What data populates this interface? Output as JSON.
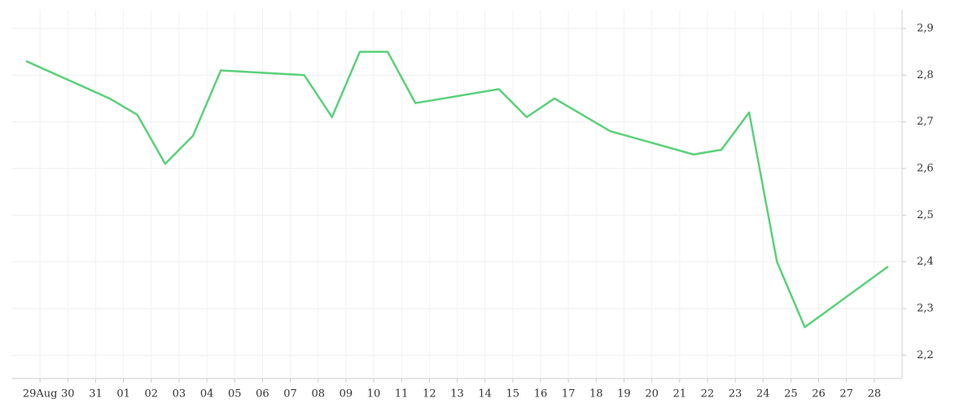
{
  "chart_data": {
    "type": "line",
    "x": [
      -0.5,
      2.5,
      3.5,
      4.5,
      5.5,
      6.5,
      9.5,
      10.5,
      11.5,
      12.5,
      13.5,
      16.5,
      17.5,
      18.5,
      20.5,
      23.5,
      24.5,
      25.5,
      26.5,
      27.5,
      30.5
    ],
    "series": [
      {
        "color": "#5ad17a",
        "values": [
          2.83,
          2.75,
          2.715,
          2.61,
          2.67,
          2.81,
          2.8,
          2.71,
          2.85,
          2.85,
          2.74,
          2.77,
          2.71,
          2.75,
          2.68,
          2.63,
          2.64,
          2.72,
          2.4,
          2.26,
          2.39
        ]
      }
    ],
    "xlim": [
      -1,
      31
    ],
    "xticks": [
      {
        "value": 0,
        "label": "29Aug"
      },
      {
        "value": 1,
        "label": "30"
      },
      {
        "value": 2,
        "label": "31"
      },
      {
        "value": 3,
        "label": "01"
      },
      {
        "value": 4,
        "label": "02"
      },
      {
        "value": 5,
        "label": "03"
      },
      {
        "value": 6,
        "label": "04"
      },
      {
        "value": 7,
        "label": "05"
      },
      {
        "value": 8,
        "label": "06"
      },
      {
        "value": 9,
        "label": "07"
      },
      {
        "value": 10,
        "label": "08"
      },
      {
        "value": 11,
        "label": "09"
      },
      {
        "value": 12,
        "label": "10"
      },
      {
        "value": 13,
        "label": "11"
      },
      {
        "value": 14,
        "label": "12"
      },
      {
        "value": 15,
        "label": "13"
      },
      {
        "value": 16,
        "label": "14"
      },
      {
        "value": 17,
        "label": "15"
      },
      {
        "value": 18,
        "label": "16"
      },
      {
        "value": 19,
        "label": "17"
      },
      {
        "value": 20,
        "label": "18"
      },
      {
        "value": 21,
        "label": "19"
      },
      {
        "value": 22,
        "label": "20"
      },
      {
        "value": 23,
        "label": "21"
      },
      {
        "value": 24,
        "label": "22"
      },
      {
        "value": 25,
        "label": "23"
      },
      {
        "value": 26,
        "label": "24"
      },
      {
        "value": 27,
        "label": "25"
      },
      {
        "value": 28,
        "label": "26"
      },
      {
        "value": 29,
        "label": "27"
      },
      {
        "value": 30,
        "label": "28"
      }
    ],
    "ylim": [
      2.15,
      2.94
    ],
    "yticks": [
      {
        "value": 2.2,
        "label": "2,2"
      },
      {
        "value": 2.3,
        "label": "2,3"
      },
      {
        "value": 2.4,
        "label": "2,4"
      },
      {
        "value": 2.5,
        "label": "2,5"
      },
      {
        "value": 2.6,
        "label": "2,6"
      },
      {
        "value": 2.7,
        "label": "2,7"
      },
      {
        "value": 2.8,
        "label": "2,8"
      },
      {
        "value": 2.9,
        "label": "2,9"
      }
    ],
    "grid": true
  }
}
